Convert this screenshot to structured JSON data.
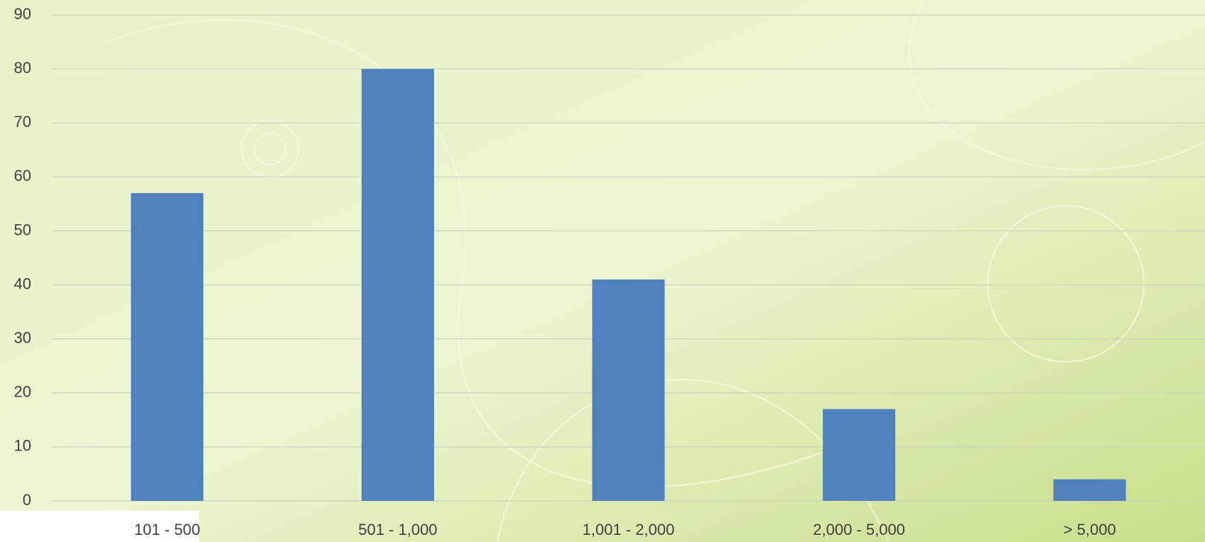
{
  "chart_data": {
    "type": "bar",
    "categories": [
      "101 - 500",
      "501 - 1,000",
      "1,001 - 2,000",
      "2,000 - 5,000",
      "> 5,000"
    ],
    "values": [
      57,
      80,
      41,
      17,
      4
    ],
    "color": "#4f81bd",
    "ylim": [
      0,
      90
    ],
    "yticks": [
      0,
      10,
      20,
      30,
      40,
      50,
      60,
      70,
      80,
      90
    ],
    "grid": true
  }
}
